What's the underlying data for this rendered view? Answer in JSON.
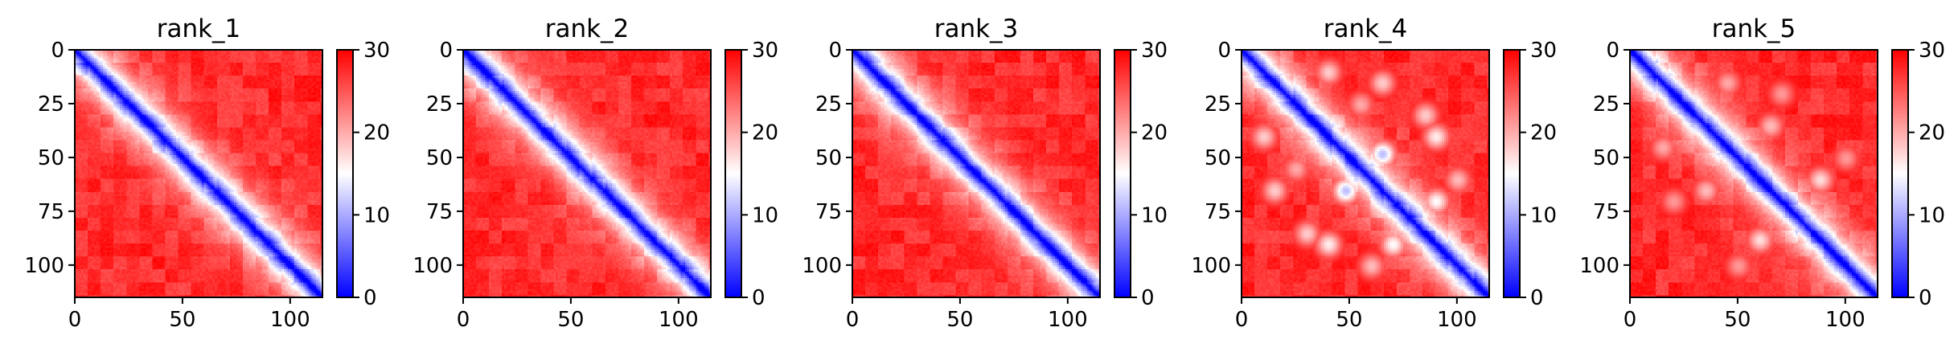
{
  "chart_data": [
    {
      "type": "heatmap",
      "title": "rank_1",
      "xticks": [
        0,
        50,
        100
      ],
      "yticks": [
        0,
        25,
        50,
        75,
        100
      ],
      "colorbar_ticks": [
        0,
        10,
        20,
        30
      ],
      "xlim": [
        0,
        115
      ],
      "ylim": [
        115,
        0
      ],
      "clim": [
        0,
        30
      ],
      "colormap": "bwr",
      "matrix_size": 115,
      "pattern": "pairwise distance map: low values along the main diagonal, near 30 elsewhere",
      "contacts": []
    },
    {
      "type": "heatmap",
      "title": "rank_2",
      "xticks": [
        0,
        50,
        100
      ],
      "yticks": [
        0,
        25,
        50,
        75,
        100
      ],
      "colorbar_ticks": [
        0,
        10,
        20,
        30
      ],
      "xlim": [
        0,
        115
      ],
      "ylim": [
        115,
        0
      ],
      "clim": [
        0,
        30
      ],
      "colormap": "bwr",
      "matrix_size": 115,
      "pattern": "pairwise distance map: low values along the main diagonal, near 30 elsewhere",
      "contacts": []
    },
    {
      "type": "heatmap",
      "title": "rank_3",
      "xticks": [
        0,
        50,
        100
      ],
      "yticks": [
        0,
        25,
        50,
        75,
        100
      ],
      "colorbar_ticks": [
        0,
        10,
        20,
        30
      ],
      "xlim": [
        0,
        115
      ],
      "ylim": [
        115,
        0
      ],
      "clim": [
        0,
        30
      ],
      "colormap": "bwr",
      "matrix_size": 115,
      "pattern": "pairwise distance map: low values along the main diagonal, near 30 elsewhere",
      "contacts": []
    },
    {
      "type": "heatmap",
      "title": "rank_4",
      "xticks": [
        0,
        50,
        100
      ],
      "yticks": [
        0,
        25,
        50,
        75,
        100
      ],
      "colorbar_ticks": [
        0,
        10,
        20,
        30
      ],
      "xlim": [
        0,
        115
      ],
      "ylim": [
        115,
        0
      ],
      "clim": [
        0,
        30
      ],
      "colormap": "bwr",
      "matrix_size": 115,
      "pattern": "pairwise distance map with off-diagonal contact patches",
      "contacts": [
        [
          10,
          40,
          18
        ],
        [
          40,
          10,
          18
        ],
        [
          15,
          65,
          18
        ],
        [
          65,
          15,
          18
        ],
        [
          30,
          85,
          18
        ],
        [
          85,
          30,
          18
        ],
        [
          48,
          65,
          11
        ],
        [
          65,
          48,
          11
        ],
        [
          40,
          90,
          16
        ],
        [
          90,
          40,
          16
        ],
        [
          70,
          90,
          15
        ],
        [
          90,
          70,
          15
        ],
        [
          25,
          55,
          20
        ],
        [
          55,
          25,
          20
        ],
        [
          60,
          100,
          19
        ],
        [
          100,
          60,
          19
        ]
      ]
    },
    {
      "type": "heatmap",
      "title": "rank_5",
      "xticks": [
        0,
        50,
        100
      ],
      "yticks": [
        0,
        25,
        50,
        75,
        100
      ],
      "colorbar_ticks": [
        0,
        10,
        20,
        30
      ],
      "xlim": [
        0,
        115
      ],
      "ylim": [
        115,
        0
      ],
      "clim": [
        0,
        30
      ],
      "colormap": "bwr",
      "matrix_size": 115,
      "pattern": "pairwise distance map with faint off-diagonal contact patches",
      "contacts": [
        [
          15,
          45,
          20
        ],
        [
          45,
          15,
          20
        ],
        [
          35,
          65,
          19
        ],
        [
          65,
          35,
          19
        ],
        [
          60,
          88,
          17
        ],
        [
          88,
          60,
          17
        ],
        [
          20,
          70,
          21
        ],
        [
          70,
          20,
          21
        ],
        [
          50,
          100,
          21
        ],
        [
          100,
          50,
          21
        ]
      ]
    }
  ]
}
